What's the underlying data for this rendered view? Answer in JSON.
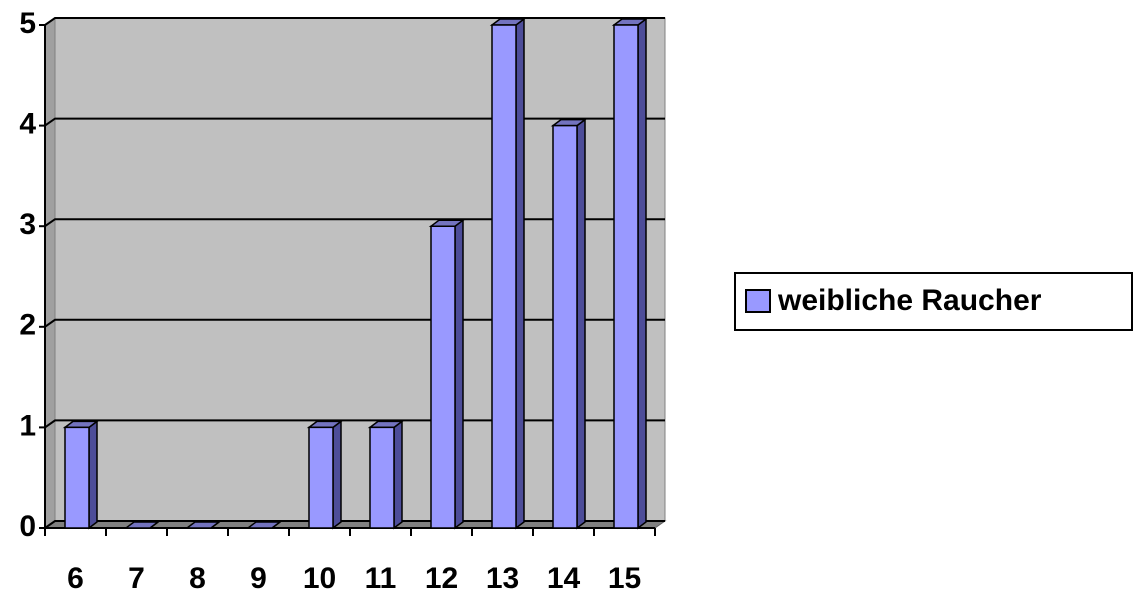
{
  "chart_data": {
    "type": "bar",
    "categories": [
      "6",
      "7",
      "8",
      "9",
      "10",
      "11",
      "12",
      "13",
      "14",
      "15"
    ],
    "series": [
      {
        "name": "weibliche Raucher",
        "color": "#9999ff",
        "values": [
          1,
          0,
          0,
          0,
          1,
          1,
          3,
          5,
          4,
          5
        ]
      }
    ],
    "ylim": [
      0,
      5
    ],
    "yticks": [
      0,
      1,
      2,
      3,
      4,
      5
    ],
    "grid": true,
    "legend": "right"
  }
}
